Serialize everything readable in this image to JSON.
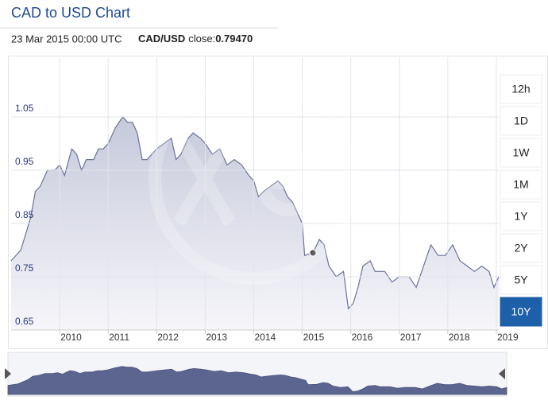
{
  "header": {
    "title": "CAD to USD Chart",
    "date": "23 Mar 2015 00:00 UTC",
    "pair": "CAD/USD",
    "close_label": "close:",
    "close_value": "0.79470"
  },
  "range_buttons": [
    "12h",
    "1D",
    "1W",
    "1M",
    "1Y",
    "2Y",
    "5Y",
    "10Y"
  ],
  "active_range_index": 7,
  "chart_data": {
    "type": "area",
    "color": "#69729a",
    "x": [
      2009.0,
      2009.2,
      2009.4,
      2009.5,
      2009.6,
      2009.75,
      2009.9,
      2010.0,
      2010.1,
      2010.25,
      2010.35,
      2010.45,
      2010.55,
      2010.7,
      2010.8,
      2010.9,
      2011.0,
      2011.15,
      2011.3,
      2011.4,
      2011.5,
      2011.6,
      2011.7,
      2011.8,
      2011.9,
      2012.0,
      2012.15,
      2012.3,
      2012.4,
      2012.5,
      2012.65,
      2012.75,
      2012.9,
      2013.0,
      2013.15,
      2013.3,
      2013.45,
      2013.6,
      2013.75,
      2013.9,
      2014.0,
      2014.1,
      2014.2,
      2014.35,
      2014.5,
      2014.6,
      2014.7,
      2014.8,
      2014.9,
      2015.0,
      2015.05,
      2015.22,
      2015.35,
      2015.45,
      2015.55,
      2015.7,
      2015.85,
      2015.95,
      2016.05,
      2016.15,
      2016.25,
      2016.4,
      2016.5,
      2016.7,
      2016.85,
      2017.0,
      2017.2,
      2017.35,
      2017.5,
      2017.65,
      2017.8,
      2017.95,
      2018.1,
      2018.25,
      2018.4,
      2018.55,
      2018.7,
      2018.85,
      2018.95,
      2019.05
    ],
    "values": [
      0.78,
      0.8,
      0.86,
      0.91,
      0.92,
      0.95,
      0.95,
      0.96,
      0.94,
      0.99,
      0.98,
      0.95,
      0.97,
      0.97,
      0.99,
      0.99,
      1.0,
      1.03,
      1.05,
      1.04,
      1.04,
      1.02,
      0.97,
      0.97,
      0.98,
      0.99,
      1.0,
      1.01,
      0.97,
      0.98,
      1.01,
      1.02,
      1.01,
      1.0,
      0.98,
      0.99,
      0.96,
      0.97,
      0.96,
      0.94,
      0.93,
      0.9,
      0.91,
      0.92,
      0.93,
      0.92,
      0.9,
      0.89,
      0.87,
      0.85,
      0.79,
      0.7947,
      0.82,
      0.81,
      0.77,
      0.75,
      0.76,
      0.69,
      0.7,
      0.73,
      0.77,
      0.78,
      0.76,
      0.76,
      0.74,
      0.75,
      0.75,
      0.73,
      0.77,
      0.81,
      0.79,
      0.79,
      0.81,
      0.78,
      0.77,
      0.76,
      0.77,
      0.76,
      0.73,
      0.75
    ],
    "highlight_x": 2015.22,
    "xlim": [
      2009.0,
      2019.05
    ],
    "ylim": [
      0.65,
      1.15
    ],
    "xticks": [
      2010,
      2011,
      2012,
      2013,
      2014,
      2015,
      2016,
      2017,
      2018,
      2019
    ],
    "yticks": [
      0.65,
      0.75,
      0.85,
      0.95,
      1.05
    ],
    "grid": true
  }
}
